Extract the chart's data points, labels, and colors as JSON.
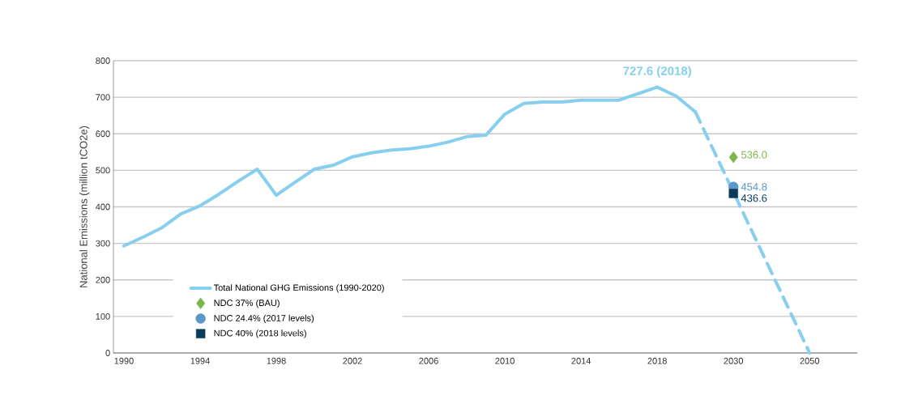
{
  "chart_data": {
    "type": "line",
    "ylabel": "National Emissions (million tCO2e)",
    "categories": [
      "1990",
      null,
      null,
      null,
      "1994",
      null,
      null,
      null,
      "1998",
      null,
      null,
      null,
      "2002",
      null,
      null,
      null,
      "2006",
      null,
      null,
      null,
      "2010",
      null,
      null,
      null,
      "2014",
      null,
      null,
      null,
      "2018",
      null,
      null,
      null,
      "2030",
      null,
      null,
      null,
      "2050"
    ],
    "series": [
      {
        "name": "Total National GHG Emissions (1990-2020)",
        "color": "#87cfee",
        "line_style": "solid",
        "values": [
          293,
          317,
          343,
          381,
          403,
          435,
          470,
          503,
          432,
          468,
          503,
          514,
          537,
          548,
          555,
          559,
          566,
          577,
          592,
          596,
          654,
          683,
          687,
          687,
          692,
          692,
          692,
          710,
          727.6,
          703,
          660,
          null,
          null,
          null,
          null,
          null,
          null
        ]
      },
      {
        "color": "#87cfee",
        "line_style": "dashed",
        "values": [
          null,
          null,
          null,
          null,
          null,
          null,
          null,
          null,
          null,
          null,
          null,
          null,
          null,
          null,
          null,
          null,
          null,
          null,
          null,
          null,
          null,
          null,
          null,
          null,
          null,
          null,
          null,
          null,
          null,
          null,
          660,
          null,
          null,
          null,
          null,
          null,
          0
        ]
      },
      {
        "name": "NDC 37% (BAU)",
        "color": "#7ab648",
        "type": "scatter",
        "marker": "diamond",
        "values": [
          null,
          null,
          null,
          null,
          null,
          null,
          null,
          null,
          null,
          null,
          null,
          null,
          null,
          null,
          null,
          null,
          null,
          null,
          null,
          null,
          null,
          null,
          null,
          null,
          null,
          null,
          null,
          null,
          null,
          null,
          null,
          null,
          536.0,
          null,
          null,
          null,
          null
        ],
        "value_labels": [
          null,
          null,
          null,
          null,
          null,
          null,
          null,
          null,
          null,
          null,
          null,
          null,
          null,
          null,
          null,
          null,
          null,
          null,
          null,
          null,
          null,
          null,
          null,
          null,
          null,
          null,
          null,
          null,
          null,
          null,
          null,
          null,
          "536.0",
          null,
          null,
          null,
          null
        ]
      },
      {
        "name": "NDC 24.4% (2017 levels)",
        "color": "#5b97c9",
        "type": "scatter",
        "marker": "circle",
        "values": [
          null,
          null,
          null,
          null,
          null,
          null,
          null,
          null,
          null,
          null,
          null,
          null,
          null,
          null,
          null,
          null,
          null,
          null,
          null,
          null,
          null,
          null,
          null,
          null,
          null,
          null,
          null,
          null,
          null,
          null,
          null,
          null,
          454.8,
          null,
          null,
          null,
          null
        ],
        "value_labels": [
          null,
          null,
          null,
          null,
          null,
          null,
          null,
          null,
          null,
          null,
          null,
          null,
          null,
          null,
          null,
          null,
          null,
          null,
          null,
          null,
          null,
          null,
          null,
          null,
          null,
          null,
          null,
          null,
          null,
          null,
          null,
          null,
          "454.8",
          null,
          null,
          null,
          null
        ]
      },
      {
        "name": "NDC 40% (2018 levels)",
        "color": "#0b3a5c",
        "type": "scatter",
        "marker": "square",
        "values": [
          null,
          null,
          null,
          null,
          null,
          null,
          null,
          null,
          null,
          null,
          null,
          null,
          null,
          null,
          null,
          null,
          null,
          null,
          null,
          null,
          null,
          null,
          null,
          null,
          null,
          null,
          null,
          null,
          null,
          null,
          null,
          null,
          436.6,
          null,
          null,
          null,
          null
        ],
        "value_labels": [
          null,
          null,
          null,
          null,
          null,
          null,
          null,
          null,
          null,
          null,
          null,
          null,
          null,
          null,
          null,
          null,
          null,
          null,
          null,
          null,
          null,
          null,
          null,
          null,
          null,
          null,
          null,
          null,
          null,
          null,
          null,
          null,
          "436.6",
          null,
          null,
          null,
          null
        ]
      }
    ],
    "ylim": [
      0,
      800
    ],
    "yticks": [
      0,
      100,
      200,
      300,
      400,
      500,
      600,
      700,
      800
    ],
    "grid": "y",
    "legend": "bottom left",
    "annotations": [
      {
        "text": "727.6 (2018)",
        "x": "2018",
        "y": 727.6
      }
    ]
  }
}
